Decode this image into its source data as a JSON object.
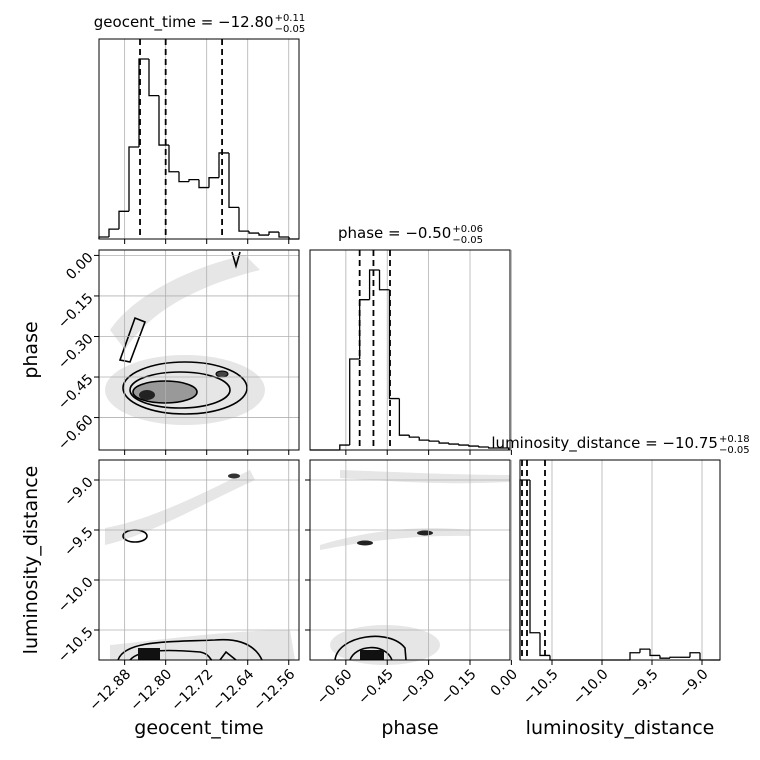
{
  "chart_data": [
    {
      "type": "histogram",
      "title": "geocent_time = −12.80",
      "title_upper": "+0.11",
      "title_lower": "−0.05",
      "color": "#000000",
      "bins": [
        -12.93,
        -12.9105,
        -12.891,
        -12.8715,
        -12.852,
        -12.8325,
        -12.813,
        -12.7935,
        -12.774,
        -12.7545,
        -12.735,
        -12.7155,
        -12.696,
        -12.6765,
        -12.657,
        -12.6375,
        -12.618,
        -12.5985,
        -12.579,
        -12.5595,
        -12.54
      ],
      "counts": [
        2,
        10,
        28,
        93,
        182,
        145,
        95,
        68,
        58,
        60,
        52,
        62,
        87,
        32,
        8,
        6,
        4,
        7,
        2,
        0
      ],
      "quantiles": [
        -12.85,
        -12.8,
        -12.69
      ],
      "grid": true
    },
    {
      "type": "hist2d",
      "ylabel": "phase",
      "ylim": [
        -0.72,
        0.02
      ],
      "yticks": [
        {
          "value": 0,
          "label": "0.00"
        },
        {
          "value": -0.15,
          "label": "−0.15"
        },
        {
          "value": -0.3,
          "label": "−0.30"
        },
        {
          "value": -0.45,
          "label": "−0.45"
        },
        {
          "value": -0.6,
          "label": "−0.60"
        }
      ],
      "grid": true
    },
    {
      "type": "histogram",
      "title": "phase = −0.50",
      "title_upper": "+0.06",
      "title_lower": "−0.05",
      "color": "#000000",
      "bins": [
        -0.73,
        -0.694,
        -0.658,
        -0.622,
        -0.586,
        -0.55,
        -0.514,
        -0.478,
        -0.442,
        -0.406,
        -0.37,
        -0.334,
        -0.298,
        -0.262,
        -0.226,
        -0.19,
        -0.154,
        -0.118,
        -0.082,
        -0.046,
        -0.01
      ],
      "counts": [
        0,
        0,
        0,
        5,
        92,
        152,
        182,
        162,
        52,
        15,
        13,
        10,
        9,
        7,
        6,
        5,
        4,
        3,
        2,
        2
      ],
      "quantiles": [
        -0.55,
        -0.5,
        -0.44
      ],
      "grid": true
    },
    {
      "type": "hist2d",
      "xlabel": "geocent_time",
      "xlim": [
        -12.93,
        -12.54
      ],
      "xticks": [
        {
          "value": -12.88,
          "label": "−12.88"
        },
        {
          "value": -12.8,
          "label": "−12.80"
        },
        {
          "value": -12.72,
          "label": "−12.72"
        },
        {
          "value": -12.64,
          "label": "−12.64"
        },
        {
          "value": -12.56,
          "label": "−12.56"
        }
      ],
      "ylabel": "luminosity_distance",
      "ylim": [
        -10.8,
        -8.8
      ],
      "yticks": [
        {
          "value": -9.0,
          "label": "−9.0"
        },
        {
          "value": -9.5,
          "label": "−9.5"
        },
        {
          "value": -10.0,
          "label": "−10.0"
        },
        {
          "value": -10.5,
          "label": "−10.5"
        }
      ],
      "grid": true
    },
    {
      "type": "hist2d",
      "xlabel": "phase",
      "xlim": [
        -0.73,
        -0.005
      ],
      "xticks": [
        {
          "value": -0.6,
          "label": "−0.60"
        },
        {
          "value": -0.45,
          "label": "−0.45"
        },
        {
          "value": -0.3,
          "label": "−0.30"
        },
        {
          "value": -0.15,
          "label": "−0.15"
        },
        {
          "value": 0,
          "label": "0.00"
        }
      ],
      "grid": true
    },
    {
      "type": "histogram",
      "title": "luminosity_distance = −10.75",
      "title_upper": "+0.18",
      "title_lower": "−0.05",
      "color": "#000000",
      "xlabel": "luminosity_distance",
      "xlim": [
        -10.82,
        -8.82
      ],
      "xticks": [
        {
          "value": -10.5,
          "label": "−10.5"
        },
        {
          "value": -10.0,
          "label": "−10.0"
        },
        {
          "value": -9.5,
          "label": "−9.5"
        },
        {
          "value": -9.0,
          "label": "−9.0"
        }
      ],
      "bins": [
        -10.82,
        -10.72,
        -10.62,
        -10.52,
        -10.42,
        -10.32,
        -10.22,
        -10.12,
        -10.02,
        -9.92,
        -9.82,
        -9.72,
        -9.62,
        -9.52,
        -9.42,
        -9.32,
        -9.22,
        -9.12,
        -9.02,
        -8.92,
        -8.82
      ],
      "counts": [
        198,
        30,
        5,
        0,
        0,
        0,
        0,
        0,
        0,
        0,
        0,
        8,
        12,
        5,
        2,
        3,
        3,
        8,
        0,
        0
      ],
      "quantiles": [
        -10.8,
        -10.75,
        -10.57
      ],
      "grid": true
    }
  ]
}
